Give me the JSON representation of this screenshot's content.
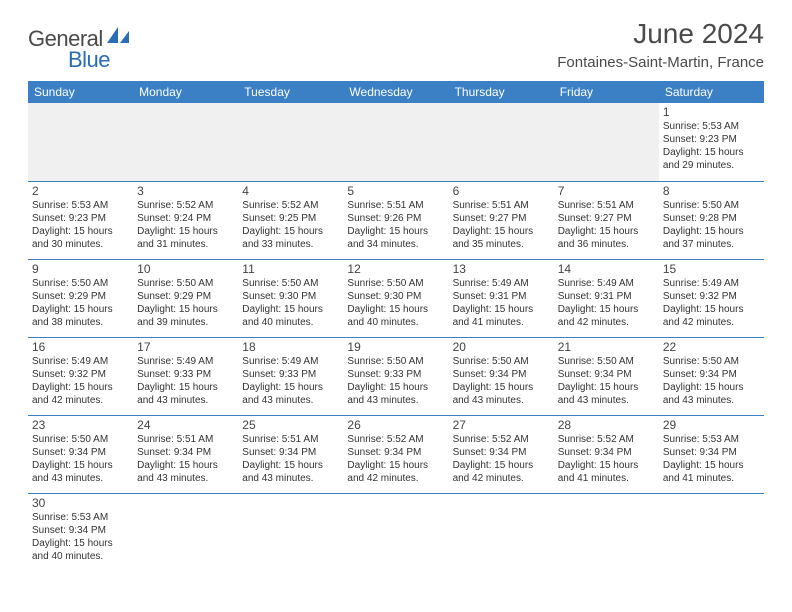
{
  "logo": {
    "general": "General",
    "blue": "Blue"
  },
  "title": "June 2024",
  "location": "Fontaines-Saint-Martin, France",
  "colors": {
    "header_bg": "#3b7fc4",
    "header_text": "#ffffff",
    "border": "#3b7fc4",
    "empty_bg": "#f0f0f0",
    "text": "#333333",
    "logo_blue": "#2a6db5"
  },
  "weekdays": [
    "Sunday",
    "Monday",
    "Tuesday",
    "Wednesday",
    "Thursday",
    "Friday",
    "Saturday"
  ],
  "days": {
    "1": {
      "sunrise": "5:53 AM",
      "sunset": "9:23 PM",
      "daylight": "15 hours and 29 minutes."
    },
    "2": {
      "sunrise": "5:53 AM",
      "sunset": "9:23 PM",
      "daylight": "15 hours and 30 minutes."
    },
    "3": {
      "sunrise": "5:52 AM",
      "sunset": "9:24 PM",
      "daylight": "15 hours and 31 minutes."
    },
    "4": {
      "sunrise": "5:52 AM",
      "sunset": "9:25 PM",
      "daylight": "15 hours and 33 minutes."
    },
    "5": {
      "sunrise": "5:51 AM",
      "sunset": "9:26 PM",
      "daylight": "15 hours and 34 minutes."
    },
    "6": {
      "sunrise": "5:51 AM",
      "sunset": "9:27 PM",
      "daylight": "15 hours and 35 minutes."
    },
    "7": {
      "sunrise": "5:51 AM",
      "sunset": "9:27 PM",
      "daylight": "15 hours and 36 minutes."
    },
    "8": {
      "sunrise": "5:50 AM",
      "sunset": "9:28 PM",
      "daylight": "15 hours and 37 minutes."
    },
    "9": {
      "sunrise": "5:50 AM",
      "sunset": "9:29 PM",
      "daylight": "15 hours and 38 minutes."
    },
    "10": {
      "sunrise": "5:50 AM",
      "sunset": "9:29 PM",
      "daylight": "15 hours and 39 minutes."
    },
    "11": {
      "sunrise": "5:50 AM",
      "sunset": "9:30 PM",
      "daylight": "15 hours and 40 minutes."
    },
    "12": {
      "sunrise": "5:50 AM",
      "sunset": "9:30 PM",
      "daylight": "15 hours and 40 minutes."
    },
    "13": {
      "sunrise": "5:49 AM",
      "sunset": "9:31 PM",
      "daylight": "15 hours and 41 minutes."
    },
    "14": {
      "sunrise": "5:49 AM",
      "sunset": "9:31 PM",
      "daylight": "15 hours and 42 minutes."
    },
    "15": {
      "sunrise": "5:49 AM",
      "sunset": "9:32 PM",
      "daylight": "15 hours and 42 minutes."
    },
    "16": {
      "sunrise": "5:49 AM",
      "sunset": "9:32 PM",
      "daylight": "15 hours and 42 minutes."
    },
    "17": {
      "sunrise": "5:49 AM",
      "sunset": "9:33 PM",
      "daylight": "15 hours and 43 minutes."
    },
    "18": {
      "sunrise": "5:49 AM",
      "sunset": "9:33 PM",
      "daylight": "15 hours and 43 minutes."
    },
    "19": {
      "sunrise": "5:50 AM",
      "sunset": "9:33 PM",
      "daylight": "15 hours and 43 minutes."
    },
    "20": {
      "sunrise": "5:50 AM",
      "sunset": "9:34 PM",
      "daylight": "15 hours and 43 minutes."
    },
    "21": {
      "sunrise": "5:50 AM",
      "sunset": "9:34 PM",
      "daylight": "15 hours and 43 minutes."
    },
    "22": {
      "sunrise": "5:50 AM",
      "sunset": "9:34 PM",
      "daylight": "15 hours and 43 minutes."
    },
    "23": {
      "sunrise": "5:50 AM",
      "sunset": "9:34 PM",
      "daylight": "15 hours and 43 minutes."
    },
    "24": {
      "sunrise": "5:51 AM",
      "sunset": "9:34 PM",
      "daylight": "15 hours and 43 minutes."
    },
    "25": {
      "sunrise": "5:51 AM",
      "sunset": "9:34 PM",
      "daylight": "15 hours and 43 minutes."
    },
    "26": {
      "sunrise": "5:52 AM",
      "sunset": "9:34 PM",
      "daylight": "15 hours and 42 minutes."
    },
    "27": {
      "sunrise": "5:52 AM",
      "sunset": "9:34 PM",
      "daylight": "15 hours and 42 minutes."
    },
    "28": {
      "sunrise": "5:52 AM",
      "sunset": "9:34 PM",
      "daylight": "15 hours and 41 minutes."
    },
    "29": {
      "sunrise": "5:53 AM",
      "sunset": "9:34 PM",
      "daylight": "15 hours and 41 minutes."
    },
    "30": {
      "sunrise": "5:53 AM",
      "sunset": "9:34 PM",
      "daylight": "15 hours and 40 minutes."
    }
  },
  "labels": {
    "sunrise": "Sunrise:",
    "sunset": "Sunset:",
    "daylight": "Daylight:"
  },
  "layout": {
    "weeks": [
      [
        null,
        null,
        null,
        null,
        null,
        null,
        "1"
      ],
      [
        "2",
        "3",
        "4",
        "5",
        "6",
        "7",
        "8"
      ],
      [
        "9",
        "10",
        "11",
        "12",
        "13",
        "14",
        "15"
      ],
      [
        "16",
        "17",
        "18",
        "19",
        "20",
        "21",
        "22"
      ],
      [
        "23",
        "24",
        "25",
        "26",
        "27",
        "28",
        "29"
      ],
      [
        "30",
        null,
        null,
        null,
        null,
        null,
        null
      ]
    ]
  }
}
